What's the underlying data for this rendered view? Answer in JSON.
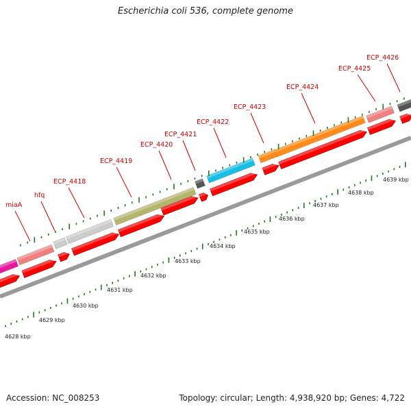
{
  "title": "Escherichia coli 536, complete genome",
  "footer": {
    "accession": "Accession: NC_008253",
    "summary": "Topology: circular; Length: 4,938,920 bp; Genes: 4,722"
  },
  "colors": {
    "background": "#ffffff",
    "backbone": "#9a9a9a",
    "cds_reverse": "#ff0000",
    "label_text": "#cc0000",
    "ticks": "#1a7a1a",
    "gene_magenta": "#e6199f",
    "gene_pink": "#ef8080",
    "gene_lightgray": "#cccccc",
    "gene_olive": "#b5b56e",
    "gene_darkgray": "#555555",
    "gene_cyan": "#19bde6",
    "gene_orange": "#ff8c1a"
  },
  "gene_labels": [
    "miaA",
    "hfq",
    "ECP_4418",
    "ECP_4419",
    "ECP_4420",
    "ECP_4421",
    "ECP_4422",
    "ECP_4423",
    "ECP_4424",
    "ECP_4425",
    "ECP_4426"
  ],
  "kbp_labels": [
    "4628 kbp",
    "4629 kbp",
    "4630 kbp",
    "4631 kbp",
    "4632 kbp",
    "4633 kbp",
    "4634 kbp",
    "4635 kbp",
    "4636 kbp",
    "4637 kbp",
    "4638 kbp",
    "4639 kbp"
  ]
}
